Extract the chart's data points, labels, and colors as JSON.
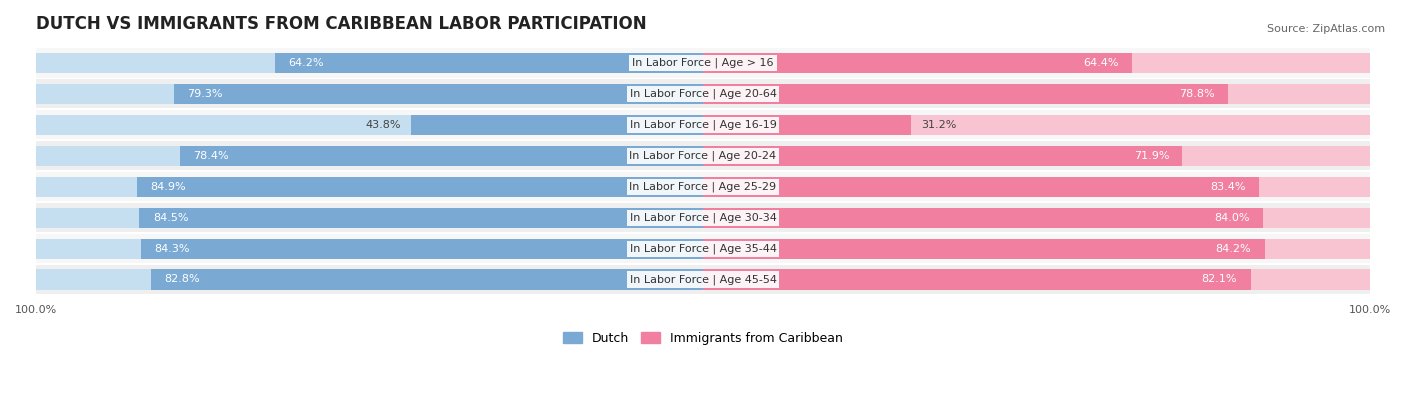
{
  "title": "DUTCH VS IMMIGRANTS FROM CARIBBEAN LABOR PARTICIPATION",
  "source": "Source: ZipAtlas.com",
  "categories": [
    "In Labor Force | Age > 16",
    "In Labor Force | Age 20-64",
    "In Labor Force | Age 16-19",
    "In Labor Force | Age 20-24",
    "In Labor Force | Age 25-29",
    "In Labor Force | Age 30-34",
    "In Labor Force | Age 35-44",
    "In Labor Force | Age 45-54"
  ],
  "dutch_values": [
    64.2,
    79.3,
    43.8,
    78.4,
    84.9,
    84.5,
    84.3,
    82.8
  ],
  "immigrant_values": [
    64.4,
    78.8,
    31.2,
    71.9,
    83.4,
    84.0,
    84.2,
    82.1
  ],
  "dutch_color": "#7aaad4",
  "dutch_light_color": "#c5dff0",
  "immigrant_color": "#f07fa0",
  "immigrant_light_color": "#f9c4d2",
  "row_bg_colors": [
    "#f7f7f7",
    "#efefef"
  ],
  "max_value": 100.0,
  "legend_dutch": "Dutch",
  "legend_immigrant": "Immigrants from Caribbean",
  "title_fontsize": 12,
  "label_fontsize": 8,
  "value_fontsize": 8,
  "axis_label_fontsize": 8
}
